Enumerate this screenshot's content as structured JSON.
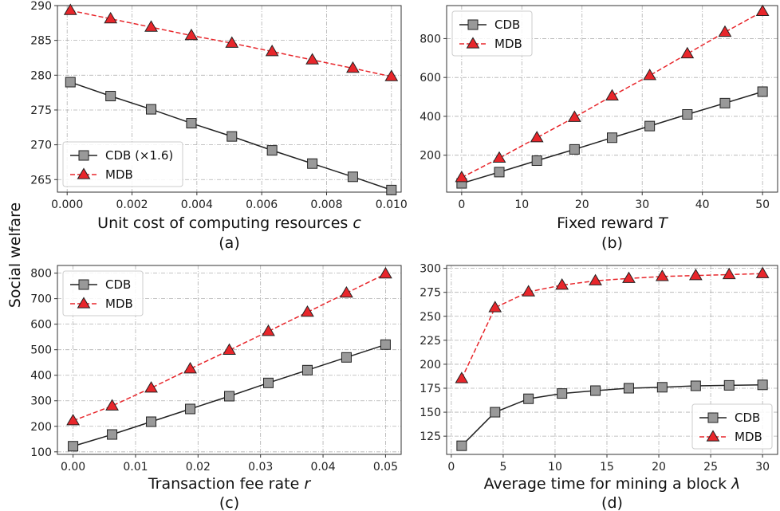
{
  "figure": {
    "ylabel": "Social welfare"
  },
  "chart_data": [
    {
      "type": "line",
      "panel_label": "(a)",
      "xlabel": "Unit cost of computing resources",
      "xlabel_var": "c",
      "xlim": [
        -0.0003,
        0.0103
      ],
      "ylim": [
        263.2,
        290.0
      ],
      "xticks": [
        0.0,
        0.002,
        0.004,
        0.006,
        0.008,
        0.01
      ],
      "xtick_labels": [
        "0.000",
        "0.002",
        "0.004",
        "0.006",
        "0.008",
        "0.010"
      ],
      "yticks": [
        265,
        270,
        275,
        280,
        285,
        290
      ],
      "ytick_labels": [
        "265",
        "270",
        "275",
        "280",
        "285",
        "290"
      ],
      "grid": true,
      "legend_position": "lower-left",
      "x": [
        0.0001,
        0.00134,
        0.00259,
        0.00383,
        0.00508,
        0.00632,
        0.00756,
        0.00881,
        0.01
      ],
      "series": [
        {
          "name": "CDB (×1.6)",
          "marker": "square",
          "style": "solid",
          "color": "#222222",
          "fill": "#999999",
          "values": [
            279.0,
            277.0,
            275.1,
            273.1,
            271.2,
            269.2,
            267.3,
            265.4,
            263.5
          ]
        },
        {
          "name": "MDB",
          "marker": "triangle",
          "style": "dashed",
          "color": "#e8262b",
          "fill": "#e8262b",
          "values": [
            289.3,
            288.1,
            286.9,
            285.7,
            284.6,
            283.4,
            282.2,
            281.0,
            279.8
          ]
        }
      ]
    },
    {
      "type": "line",
      "panel_label": "(b)",
      "xlabel": "Fixed reward",
      "xlabel_var": "T",
      "xlim": [
        -2.5,
        52.5
      ],
      "ylim": [
        10,
        970
      ],
      "xticks": [
        0,
        10,
        20,
        30,
        40,
        50
      ],
      "xtick_labels": [
        "0",
        "10",
        "20",
        "30",
        "40",
        "50"
      ],
      "yticks": [
        200,
        400,
        600,
        800
      ],
      "ytick_labels": [
        "200",
        "400",
        "600",
        "800"
      ],
      "grid": true,
      "legend_position": "upper-left",
      "x": [
        0,
        6.25,
        12.5,
        18.75,
        25,
        31.25,
        37.5,
        43.75,
        50
      ],
      "series": [
        {
          "name": "CDB",
          "marker": "square",
          "style": "solid",
          "color": "#222222",
          "fill": "#999999",
          "values": [
            55,
            113,
            172,
            230,
            290,
            350,
            410,
            468,
            527
          ]
        },
        {
          "name": "MDB",
          "marker": "triangle",
          "style": "dashed",
          "color": "#e8262b",
          "fill": "#e8262b",
          "values": [
            85,
            185,
            290,
            395,
            505,
            610,
            722,
            833,
            940
          ]
        }
      ]
    },
    {
      "type": "line",
      "panel_label": "(c)",
      "xlabel": "Transaction fee rate",
      "xlabel_var": "r",
      "xlim": [
        -0.0025,
        0.0525
      ],
      "ylim": [
        90,
        830
      ],
      "xticks": [
        0.0,
        0.01,
        0.02,
        0.03,
        0.04,
        0.05
      ],
      "xtick_labels": [
        "0.00",
        "0.01",
        "0.02",
        "0.03",
        "0.04",
        "0.05"
      ],
      "yticks": [
        100,
        200,
        300,
        400,
        500,
        600,
        700,
        800
      ],
      "ytick_labels": [
        "100",
        "200",
        "300",
        "400",
        "500",
        "600",
        "700",
        "800"
      ],
      "grid": true,
      "legend_position": "upper-left",
      "x": [
        0,
        0.00625,
        0.0125,
        0.01875,
        0.025,
        0.03125,
        0.0375,
        0.04375,
        0.05
      ],
      "series": [
        {
          "name": "CDB",
          "marker": "square",
          "style": "solid",
          "color": "#222222",
          "fill": "#999999",
          "values": [
            122,
            168,
            218,
            268,
            318,
            370,
            420,
            470,
            520
          ]
        },
        {
          "name": "MDB",
          "marker": "triangle",
          "style": "dashed",
          "color": "#e8262b",
          "fill": "#e8262b",
          "values": [
            222,
            280,
            350,
            425,
            498,
            572,
            647,
            722,
            797
          ]
        }
      ]
    },
    {
      "type": "line",
      "panel_label": "(d)",
      "xlabel": "Average time for mining a block",
      "xlabel_var": "λ",
      "xlim": [
        -0.45,
        31.45
      ],
      "ylim": [
        106,
        303
      ],
      "xticks": [
        0,
        5,
        10,
        15,
        20,
        25,
        30
      ],
      "xtick_labels": [
        "0",
        "5",
        "10",
        "15",
        "20",
        "25",
        "30"
      ],
      "yticks": [
        125,
        150,
        175,
        200,
        225,
        250,
        275,
        300
      ],
      "ytick_labels": [
        "125",
        "150",
        "175",
        "200",
        "225",
        "250",
        "275",
        "300"
      ],
      "grid": true,
      "legend_position": "lower-right",
      "x": [
        1,
        4.22,
        7.44,
        10.67,
        13.89,
        17.11,
        20.33,
        23.56,
        26.78,
        30
      ],
      "series": [
        {
          "name": "CDB",
          "marker": "square",
          "style": "solid",
          "color": "#222222",
          "fill": "#999999",
          "values": [
            115,
            150,
            164,
            169.5,
            172.5,
            175,
            176,
            177.5,
            178,
            178.5
          ]
        },
        {
          "name": "MDB",
          "marker": "triangle",
          "style": "dashed",
          "color": "#e8262b",
          "fill": "#e8262b",
          "values": [
            185,
            259,
            275.5,
            282.5,
            287,
            289.5,
            291.5,
            292.5,
            293.5,
            294.5
          ]
        }
      ]
    }
  ]
}
